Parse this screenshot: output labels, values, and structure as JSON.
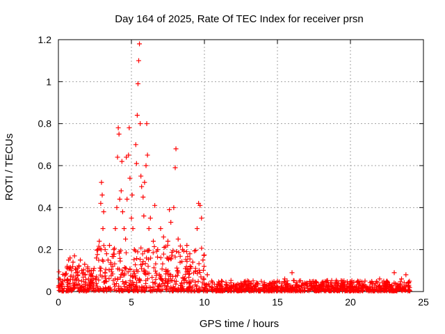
{
  "chart_data": {
    "type": "scatter",
    "title": "Day 164 of 2025, Rate Of TEC Index for receiver prsn",
    "xlabel": "GPS time / hours",
    "ylabel": "ROTI / TECUs",
    "xlim": [
      0,
      25
    ],
    "ylim": [
      0,
      1.2
    ],
    "xticks": [
      0,
      5,
      10,
      15,
      20,
      25
    ],
    "yticks": [
      0,
      0.2,
      0.4,
      0.6,
      0.8,
      1.0,
      1.2
    ],
    "xtick_labels": [
      "0",
      "5",
      "10",
      "15",
      "20",
      "25"
    ],
    "ytick_labels": [
      "0",
      "0.2",
      "0.4",
      "0.6",
      "0.8",
      "1",
      "1.2"
    ],
    "grid": true,
    "marker": "+",
    "color": "#ff0000",
    "series": [
      {
        "points": [
          [
            0.1,
            0.03
          ],
          [
            0.3,
            0.05
          ],
          [
            0.5,
            0.08
          ],
          [
            0.6,
            0.12
          ],
          [
            0.7,
            0.15
          ],
          [
            0.8,
            0.16
          ],
          [
            0.9,
            0.1
          ],
          [
            1.0,
            0.14
          ],
          [
            1.1,
            0.17
          ],
          [
            1.2,
            0.09
          ],
          [
            1.4,
            0.12
          ],
          [
            1.5,
            0.15
          ],
          [
            1.6,
            0.1
          ],
          [
            1.8,
            0.13
          ],
          [
            2.0,
            0.11
          ],
          [
            2.2,
            0.08
          ],
          [
            2.4,
            0.1
          ],
          [
            2.6,
            0.16
          ],
          [
            2.7,
            0.2
          ],
          [
            2.8,
            0.24
          ],
          [
            2.9,
            0.42
          ],
          [
            2.95,
            0.52
          ],
          [
            3.0,
            0.46
          ],
          [
            3.05,
            0.3
          ],
          [
            3.1,
            0.38
          ],
          [
            3.2,
            0.2
          ],
          [
            3.3,
            0.18
          ],
          [
            3.4,
            0.15
          ],
          [
            3.5,
            0.22
          ],
          [
            3.6,
            0.13
          ],
          [
            3.8,
            0.2
          ],
          [
            3.9,
            0.3
          ],
          [
            4.0,
            0.4
          ],
          [
            4.05,
            0.64
          ],
          [
            4.1,
            0.78
          ],
          [
            4.15,
            0.75
          ],
          [
            4.2,
            0.44
          ],
          [
            4.3,
            0.48
          ],
          [
            4.35,
            0.62
          ],
          [
            4.4,
            0.38
          ],
          [
            4.5,
            0.3
          ],
          [
            4.6,
            0.25
          ],
          [
            4.65,
            0.64
          ],
          [
            4.7,
            0.44
          ],
          [
            4.8,
            0.65
          ],
          [
            4.85,
            0.78
          ],
          [
            4.9,
            0.54
          ],
          [
            5.0,
            0.35
          ],
          [
            5.05,
            0.46
          ],
          [
            5.1,
            0.3
          ],
          [
            5.2,
            0.2
          ],
          [
            5.3,
            0.7
          ],
          [
            5.35,
            0.61
          ],
          [
            5.4,
            0.84
          ],
          [
            5.45,
            0.99
          ],
          [
            5.5,
            1.1
          ],
          [
            5.55,
            1.18
          ],
          [
            5.6,
            0.8
          ],
          [
            5.65,
            0.55
          ],
          [
            5.7,
            0.5
          ],
          [
            5.8,
            0.45
          ],
          [
            5.85,
            0.36
          ],
          [
            5.9,
            0.52
          ],
          [
            6.0,
            0.6
          ],
          [
            6.05,
            0.8
          ],
          [
            6.1,
            0.65
          ],
          [
            6.2,
            0.3
          ],
          [
            6.3,
            0.35
          ],
          [
            6.5,
            0.24
          ],
          [
            6.6,
            0.41
          ],
          [
            6.8,
            0.2
          ],
          [
            7.0,
            0.3
          ],
          [
            7.2,
            0.26
          ],
          [
            7.5,
            0.24
          ],
          [
            7.6,
            0.39
          ],
          [
            7.7,
            0.33
          ],
          [
            7.9,
            0.4
          ],
          [
            8.0,
            0.59
          ],
          [
            8.05,
            0.68
          ],
          [
            8.2,
            0.25
          ],
          [
            8.5,
            0.2
          ],
          [
            8.8,
            0.22
          ],
          [
            9.0,
            0.18
          ],
          [
            9.2,
            0.14
          ],
          [
            9.5,
            0.3
          ],
          [
            9.6,
            0.42
          ],
          [
            9.7,
            0.41
          ],
          [
            9.8,
            0.35
          ],
          [
            9.9,
            0.15
          ],
          [
            10.2,
            0.08
          ],
          [
            10.5,
            0.05
          ],
          [
            11,
            0.04
          ],
          [
            11.5,
            0.03
          ],
          [
            12,
            0.03
          ],
          [
            12.5,
            0.04
          ],
          [
            13,
            0.03
          ],
          [
            13.5,
            0.03
          ],
          [
            14,
            0.03
          ],
          [
            14.5,
            0.04
          ],
          [
            15,
            0.05
          ],
          [
            15.5,
            0.06
          ],
          [
            16,
            0.09
          ],
          [
            16.5,
            0.05
          ],
          [
            17,
            0.04
          ],
          [
            17.5,
            0.04
          ],
          [
            18,
            0.03
          ],
          [
            18.5,
            0.03
          ],
          [
            19,
            0.04
          ],
          [
            19.5,
            0.03
          ],
          [
            20,
            0.04
          ],
          [
            20.5,
            0.05
          ],
          [
            21,
            0.05
          ],
          [
            21.5,
            0.04
          ],
          [
            22,
            0.06
          ],
          [
            22.5,
            0.05
          ],
          [
            23,
            0.09
          ],
          [
            23.5,
            0.06
          ],
          [
            23.8,
            0.08
          ],
          [
            24.0,
            0.03
          ]
        ]
      }
    ]
  }
}
